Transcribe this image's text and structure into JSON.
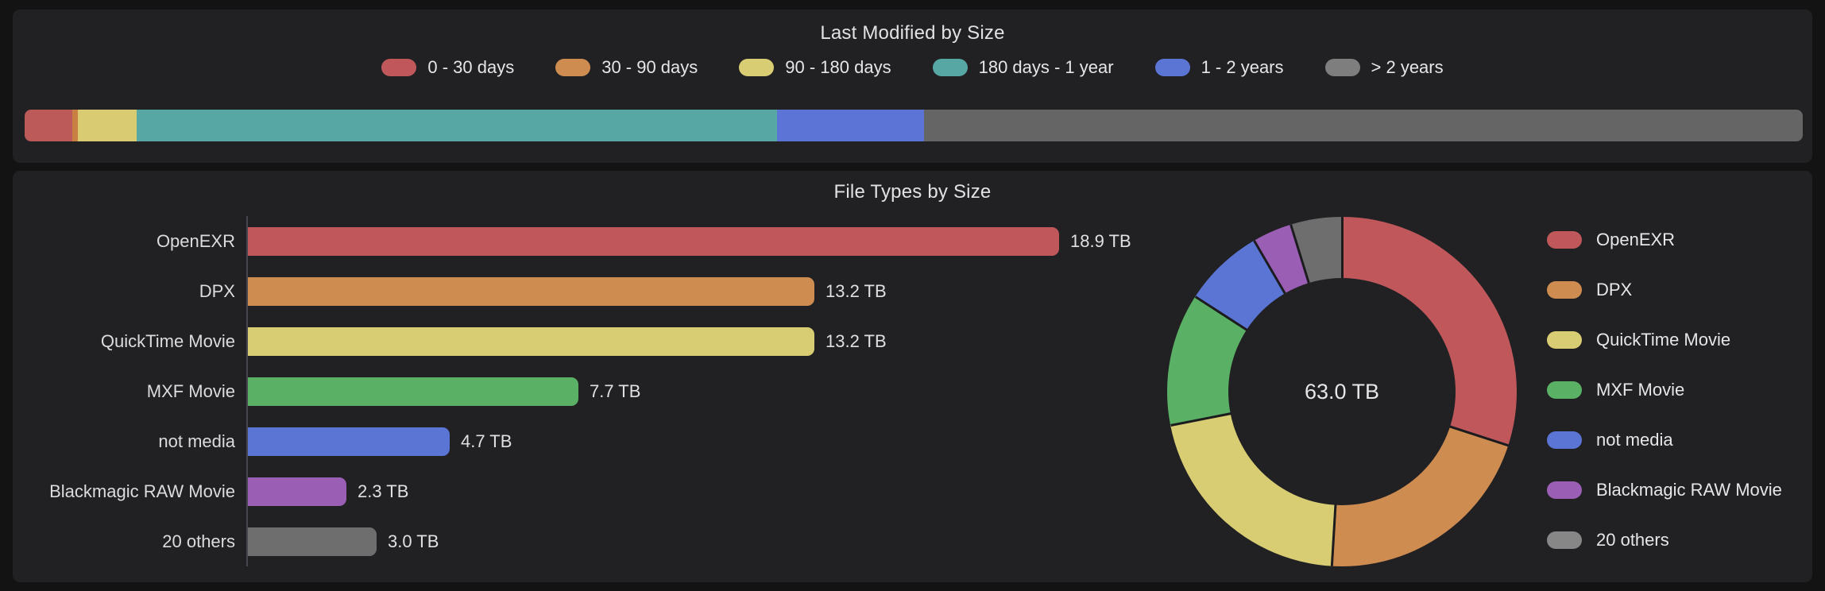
{
  "page": {
    "background": "#131314",
    "panel_background": "#212124",
    "text_color": "#DEDEE0",
    "axis_line_color": "#46474C"
  },
  "chart_data": [
    {
      "type": "bar",
      "variant": "stacked-horizontal-single-bar",
      "title": "Last Modified by Size",
      "categories": [
        "0 - 30 days",
        "30 - 90 days",
        "90 - 180 days",
        "180 days - 1 year",
        "1 - 2 years",
        "> 2 years"
      ],
      "values_percent_est": [
        2.7,
        0.3,
        3.3,
        36.0,
        8.3,
        49.4
      ],
      "colors": [
        "#C0585B",
        "#CF8C51",
        "#D9CD74",
        "#57A7A5",
        "#5B75D4",
        "#7E7E7E"
      ],
      "segment_colors": [
        "#BC5A5A",
        "#C88142",
        "#D9CB72",
        "#57A7A4",
        "#5C74D6",
        "#656565"
      ],
      "legend_position": "top",
      "value_labels_shown": false
    },
    {
      "type": "bar",
      "orientation": "horizontal",
      "title": "File Types by Size",
      "categories": [
        "OpenEXR",
        "DPX",
        "QuickTime Movie",
        "MXF Movie",
        "not media",
        "Blackmagic RAW Movie",
        "20 others"
      ],
      "values": [
        18.9,
        13.2,
        13.2,
        7.7,
        4.7,
        2.3,
        3.0
      ],
      "unit": "TB",
      "value_labels": [
        "18.9 TB",
        "13.2 TB",
        "13.2 TB",
        "7.7 TB",
        "4.7 TB",
        "2.3 TB",
        "3.0 TB"
      ],
      "colors": [
        "#C0585B",
        "#CF8C51",
        "#D9CD74",
        "#5AB065",
        "#5B75D4",
        "#9A5FB4",
        "#6E6E6E"
      ],
      "xlim": [
        0,
        21
      ],
      "grid": false
    },
    {
      "type": "pie",
      "variant": "donut",
      "title": "File Types by Size",
      "center_label": "63.0 TB",
      "total": 63.0,
      "unit": "TB",
      "categories": [
        "OpenEXR",
        "DPX",
        "QuickTime Movie",
        "MXF Movie",
        "not media",
        "Blackmagic RAW Movie",
        "20 others"
      ],
      "values": [
        18.9,
        13.2,
        13.2,
        7.7,
        4.7,
        2.3,
        3.0
      ],
      "colors": [
        "#C0585B",
        "#CF8C51",
        "#D9CD74",
        "#5AB065",
        "#5B75D4",
        "#9A5FB4",
        "#6E6E6E"
      ],
      "legend_colors": [
        "#C0585B",
        "#CF8C51",
        "#D9CD74",
        "#5AB065",
        "#5B75D4",
        "#9A5FB4",
        "#878787"
      ],
      "legend_position": "right",
      "start_angle_deg": 0
    }
  ]
}
